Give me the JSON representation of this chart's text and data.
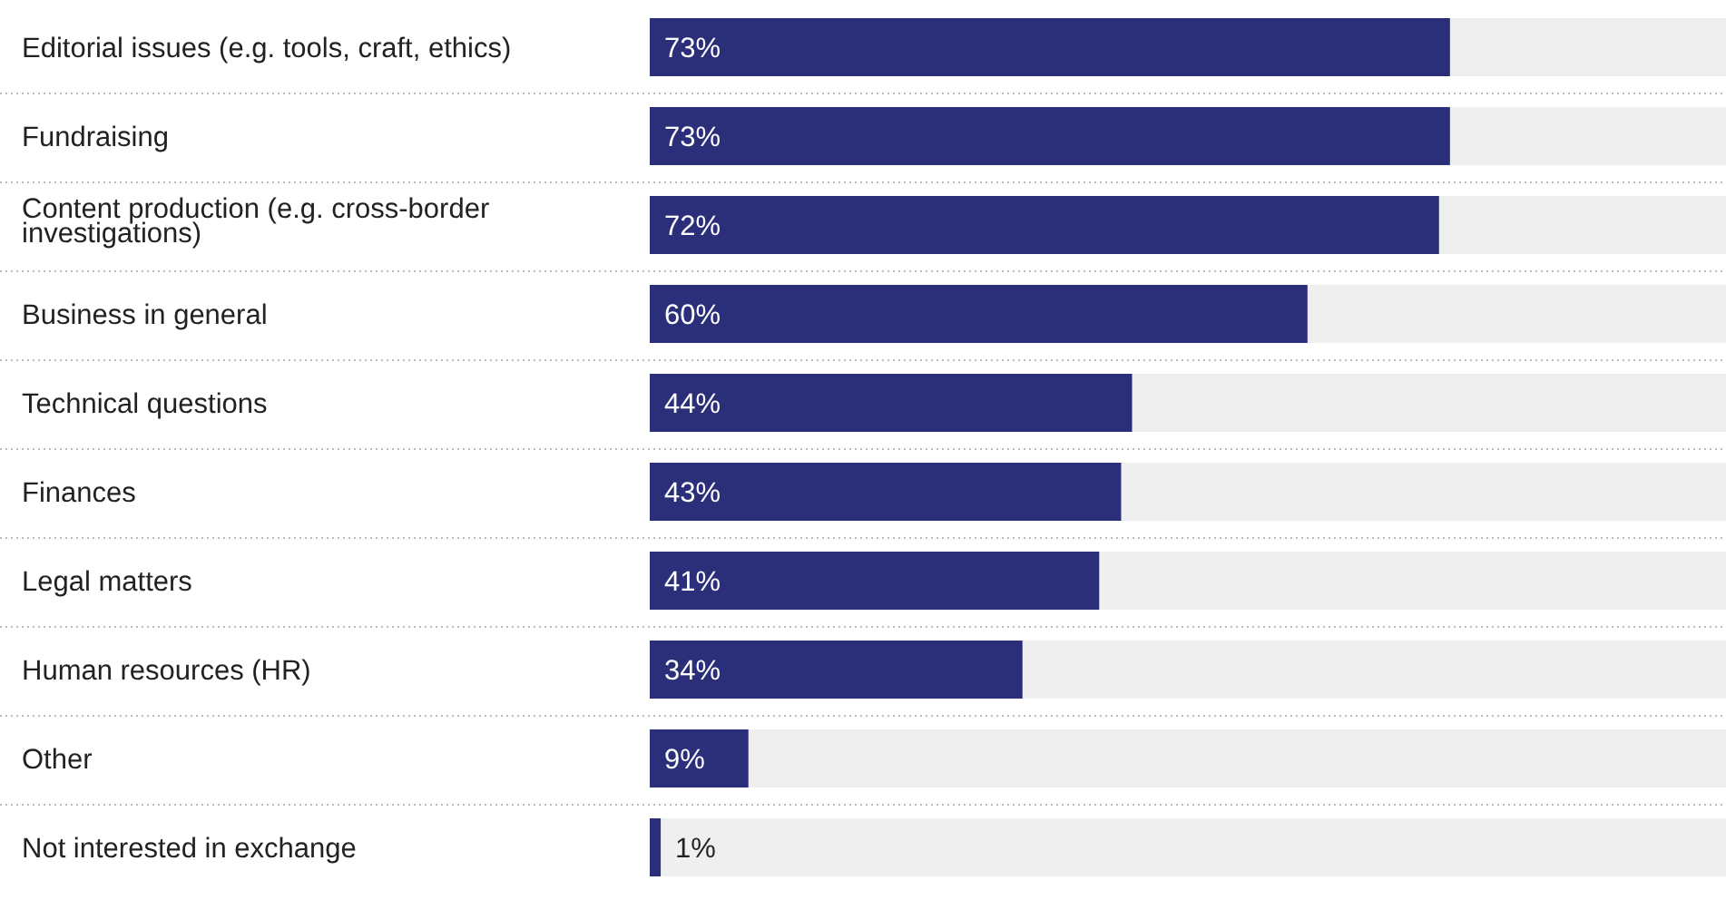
{
  "chart_data": {
    "type": "bar",
    "orientation": "horizontal",
    "categories": [
      "Editorial issues (e.g. tools, craft, ethics)",
      "Fundraising",
      "Content production (e.g. cross-border investigations)",
      "Business in general",
      "Technical questions",
      "Finances",
      "Legal matters",
      "Human resources (HR)",
      "Other",
      "Not interested in exchange"
    ],
    "values": [
      73,
      73,
      72,
      60,
      44,
      43,
      41,
      34,
      9,
      1
    ],
    "value_labels": [
      "73%",
      "73%",
      "72%",
      "60%",
      "44%",
      "43%",
      "41%",
      "34%",
      "9%",
      "1%"
    ],
    "color": "#2b2f7a",
    "xlim": [
      0,
      100
    ]
  }
}
